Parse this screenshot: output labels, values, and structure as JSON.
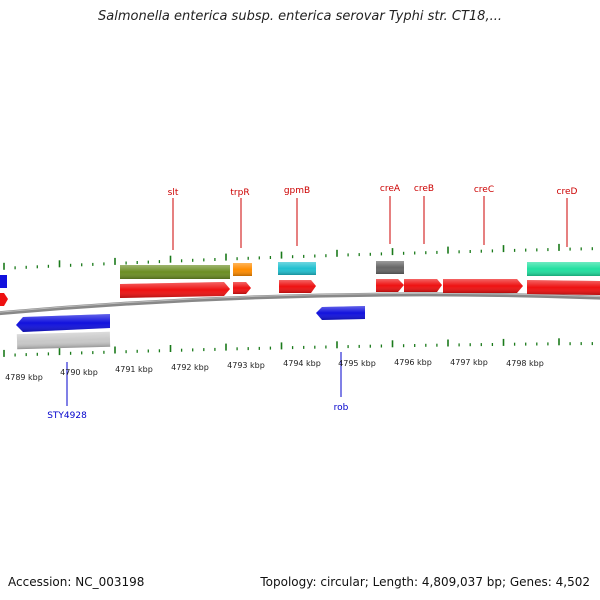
{
  "title": "Salmonella enterica subsp. enterica serovar Typhi str. CT18,...",
  "footer": {
    "accession": "Accession: NC_003198",
    "summary": "Topology: circular; Length: 4,809,037 bp; Genes: 4,502"
  },
  "axis": {
    "kbp_labels": [
      "4789 kbp",
      "4790 kbp",
      "4791 kbp",
      "4792 kbp",
      "4793 kbp",
      "4794 kbp",
      "4795 kbp",
      "4796 kbp",
      "4797 kbp",
      "4798 kbp"
    ]
  },
  "gene_labels": {
    "slt": "slt",
    "trpR": "trpR",
    "gpmB": "gpmB",
    "creA": "creA",
    "creB": "creB",
    "creC": "creC",
    "creD": "creD",
    "rob": "rob",
    "STY4928": "STY4928"
  },
  "colors": {
    "forward_gene": "#ee1111",
    "reverse_gene": "#1111dd",
    "olive": "#6b8e23",
    "orange": "#ff8c00",
    "cyan": "#20c0d0",
    "grey": "#666666",
    "light_grey": "#c8c8c8",
    "teal": "#20e0a0",
    "tick": "#1a7a1a",
    "forward_label": "#cc0000",
    "reverse_label": "#0000cc"
  }
}
